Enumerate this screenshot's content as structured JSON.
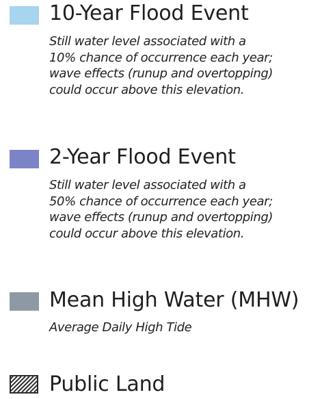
{
  "legend": {
    "items": [
      {
        "title": "10-Year Flood Event",
        "color": "#a7d4ef",
        "description_lines": [
          "Still water level associated with a",
          "10% chance of occurrence each year;",
          "wave effects (runup and overtopping)",
          "could occur above this elevation."
        ]
      },
      {
        "title": "2-Year Flood Event",
        "color": "#7b84c6",
        "description_lines": [
          "Still water level associated with a",
          "50% chance of occurrence each year;",
          "wave effects (runup and overtopping)",
          "could occur above this elevation."
        ]
      },
      {
        "title": "Mean High Water (MHW)",
        "color": "#8f99a6",
        "description_lines": [
          "Average Daily High Tide"
        ]
      },
      {
        "title": "Public Land",
        "pattern": "diagonal-hatch",
        "color": "#2b2b2b"
      }
    ]
  }
}
